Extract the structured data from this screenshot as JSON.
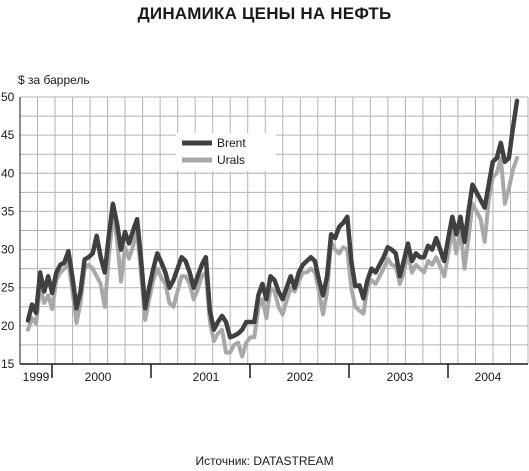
{
  "chart_data": {
    "type": "line",
    "title": "ДИНАМИКА ЦЕНЫ НА НЕФТЬ",
    "ylabel": "$ за баррель",
    "xlabel": "",
    "source": "Источник: DATASTREAM",
    "ylim": [
      15,
      50
    ],
    "yticks": [
      "15",
      "20",
      "25",
      "30",
      "35",
      "40",
      "45",
      "50"
    ],
    "year_labels": [
      "1999",
      "2000",
      "2001",
      "2002",
      "2003",
      "2004"
    ],
    "grid": true,
    "legend_position": "center-left",
    "series": [
      {
        "name": "Brent",
        "color": "#404040",
        "values": [
          20.7,
          22.8,
          21.7,
          27.0,
          24.5,
          26.5,
          24.3,
          27.0,
          28.0,
          28.3,
          29.8,
          26.3,
          22.3,
          24.5,
          28.7,
          29.0,
          29.5,
          31.8,
          29.0,
          27.0,
          31.8,
          36.0,
          33.5,
          30.0,
          32.3,
          30.8,
          32.5,
          34.0,
          28.5,
          22.3,
          25.0,
          27.5,
          29.5,
          28.3,
          27.0,
          25.0,
          26.0,
          27.5,
          29.0,
          28.5,
          27.0,
          25.0,
          26.5,
          28.0,
          29.0,
          22.0,
          19.5,
          20.5,
          21.3,
          20.5,
          18.5,
          18.7,
          19.0,
          19.5,
          20.5,
          20.5,
          20.5,
          24.0,
          25.5,
          23.5,
          26.5,
          26.0,
          24.5,
          23.5,
          25.0,
          26.5,
          25.0,
          27.0,
          28.0,
          28.5,
          29.0,
          28.5,
          26.0,
          24.0,
          26.5,
          32.0,
          31.5,
          33.0,
          33.5,
          34.3,
          28.5,
          25.2,
          25.3,
          23.6,
          26.0,
          27.5,
          27.0,
          28.0,
          29.0,
          30.3,
          30.0,
          29.5,
          26.5,
          28.5,
          30.8,
          28.5,
          29.5,
          29.0,
          29.0,
          30.5,
          30.0,
          31.5,
          30.0,
          28.5,
          31.5,
          34.3,
          32.0,
          34.3,
          31.0,
          35.0,
          38.5,
          37.5,
          36.5,
          35.5,
          38.5,
          41.5,
          42.0,
          44.0,
          41.5,
          42.0,
          46.0,
          49.5
        ]
      },
      {
        "name": "Urals",
        "color": "#a8a8a8",
        "values": [
          19.5,
          21.0,
          20.3,
          25.0,
          23.0,
          24.0,
          22.2,
          26.0,
          27.0,
          27.5,
          28.3,
          24.5,
          20.4,
          23.0,
          27.5,
          28.0,
          27.5,
          26.5,
          25.5,
          22.5,
          29.0,
          34.5,
          31.5,
          25.8,
          30.3,
          28.8,
          30.5,
          32.5,
          26.5,
          20.8,
          23.5,
          26.0,
          27.5,
          26.3,
          25.5,
          23.0,
          22.5,
          24.5,
          26.5,
          26.5,
          25.5,
          23.5,
          24.8,
          26.5,
          27.0,
          20.5,
          18.0,
          19.0,
          19.5,
          16.5,
          16.5,
          17.5,
          17.8,
          16.0,
          17.8,
          18.5,
          18.5,
          22.3,
          23.5,
          21.0,
          25.0,
          24.5,
          22.5,
          21.5,
          23.3,
          25.0,
          24.5,
          25.8,
          27.0,
          27.0,
          27.5,
          27.0,
          24.5,
          21.5,
          24.5,
          31.0,
          30.0,
          29.5,
          30.3,
          30.0,
          25.0,
          22.5,
          22.0,
          21.6,
          25.0,
          26.0,
          25.5,
          26.5,
          27.5,
          28.8,
          28.0,
          27.8,
          25.5,
          27.0,
          29.5,
          27.0,
          28.0,
          27.5,
          27.0,
          28.5,
          28.0,
          29.0,
          27.8,
          26.5,
          29.5,
          32.5,
          29.5,
          32.8,
          27.5,
          31.5,
          36.0,
          35.0,
          34.0,
          31.0,
          36.5,
          39.5,
          40.0,
          42.0,
          36.0,
          38.0,
          40.5,
          42.0
        ]
      }
    ]
  }
}
